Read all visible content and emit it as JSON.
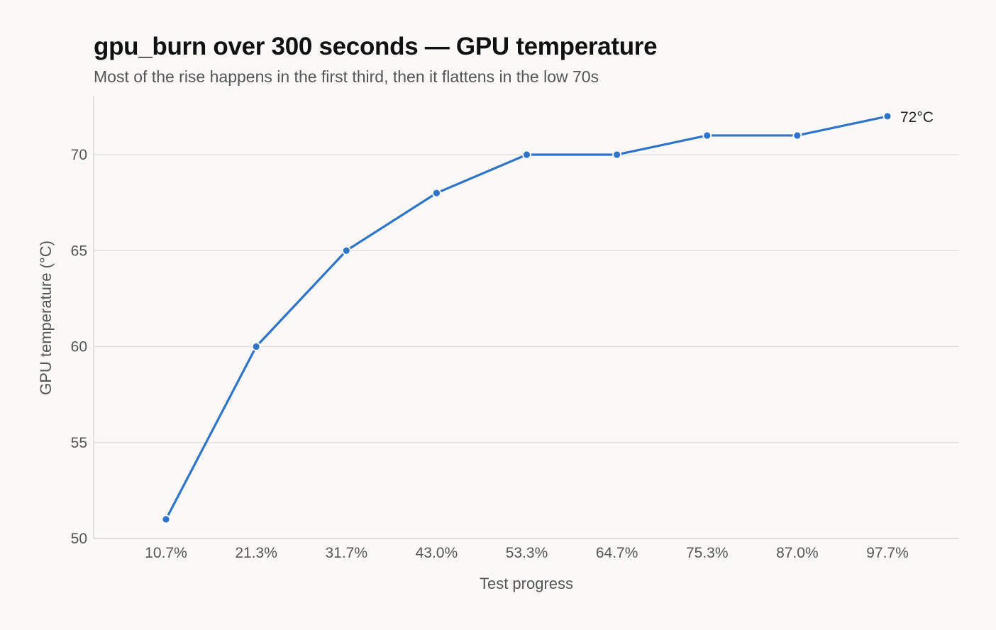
{
  "chart_data": {
    "type": "line",
    "title": "gpu_burn over 300 seconds — GPU temperature",
    "subtitle": "Most of the rise happens in the first third, then it flattens in the low 70s",
    "xlabel": "Test progress",
    "ylabel": "GPU temperature (°C)",
    "categories": [
      "10.7%",
      "21.3%",
      "31.7%",
      "43.0%",
      "53.3%",
      "64.7%",
      "75.3%",
      "87.0%",
      "97.7%"
    ],
    "series": [
      {
        "values": [
          51,
          60,
          65,
          68,
          70,
          70,
          71,
          71,
          72
        ],
        "color": "#2e75c9"
      }
    ],
    "ylim": [
      50,
      73
    ],
    "yticks": [
      50,
      55,
      60,
      65,
      70
    ],
    "grid": "horizontal",
    "end_label": "72°C"
  }
}
